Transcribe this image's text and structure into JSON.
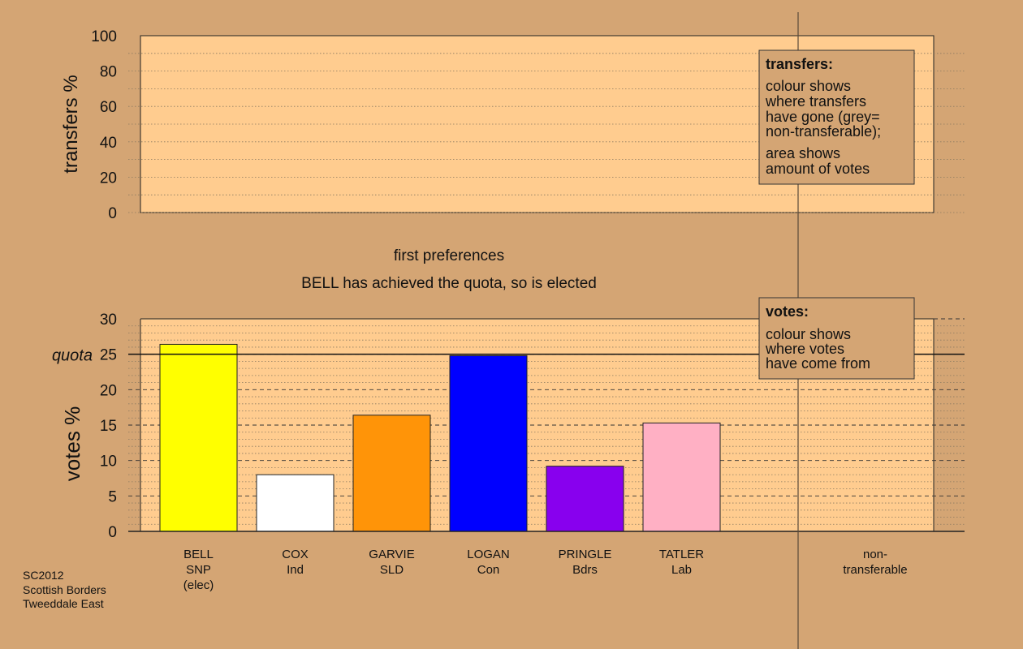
{
  "colors": {
    "background": "#d4a574",
    "panel": "#ffcc8f",
    "legend_box": "#d4a574"
  },
  "transfers_panel": {
    "ylabel": "transfers %",
    "yticks": [
      0,
      20,
      40,
      60,
      80,
      100
    ],
    "ylim": [
      0,
      100
    ],
    "legend_title": "transfers:",
    "legend_lines_a": [
      "colour shows",
      "where transfers",
      "have gone (grey=",
      "non-transferable);"
    ],
    "legend_lines_b": [
      "area shows",
      "amount of votes"
    ]
  },
  "stage": {
    "title": "first preferences",
    "message": "BELL has achieved the quota, so is elected"
  },
  "footer": {
    "lines": [
      "SC2012",
      "Scottish Borders",
      "Tweeddale East"
    ]
  },
  "chart_data": {
    "type": "bar",
    "ylabel": "votes %",
    "ylim": [
      0,
      30
    ],
    "yticks": [
      0,
      5,
      10,
      15,
      20,
      25,
      30
    ],
    "quota": 25,
    "quota_label": "quota",
    "legend_title": "votes:",
    "legend_lines": [
      "colour shows",
      "where votes",
      "have come from"
    ],
    "categories": [
      {
        "lines": [
          "BELL",
          "SNP",
          "(elec)"
        ],
        "value": 26.4,
        "color": "#ffff00"
      },
      {
        "lines": [
          "COX",
          "Ind"
        ],
        "value": 8.0,
        "color": "#ffffff"
      },
      {
        "lines": [
          "GARVIE",
          "SLD"
        ],
        "value": 16.4,
        "color": "#ff9408"
      },
      {
        "lines": [
          "LOGAN",
          "Con"
        ],
        "value": 24.8,
        "color": "#0000ff"
      },
      {
        "lines": [
          "PRINGLE",
          "Bdrs"
        ],
        "value": 9.2,
        "color": "#8800ee"
      },
      {
        "lines": [
          "TATLER",
          "Lab"
        ],
        "value": 15.3,
        "color": "#ffb0c4"
      }
    ],
    "nontransferable_label": [
      "non-",
      "transferable"
    ]
  }
}
